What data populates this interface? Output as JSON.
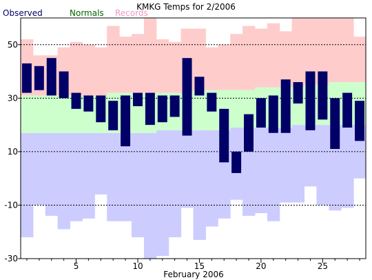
{
  "chart_data": {
    "type": "bar",
    "title": "KMKG Temps for 2/2006",
    "xlabel": "February 2006",
    "ylabel": "",
    "ylim": [
      -30,
      60
    ],
    "y_ticks": [
      -30,
      -10,
      10,
      30,
      50
    ],
    "y_tick_labels": [
      "-30",
      "-10",
      "10",
      "30",
      "50"
    ],
    "x_tick_days": [
      5,
      10,
      15,
      20,
      25
    ],
    "x_tick_labels": [
      "5",
      "10",
      "15",
      "20",
      "25"
    ],
    "days": [
      1,
      2,
      3,
      4,
      5,
      6,
      7,
      8,
      9,
      10,
      11,
      12,
      13,
      14,
      15,
      16,
      17,
      18,
      19,
      20,
      21,
      22,
      23,
      24,
      25,
      26,
      27,
      28
    ],
    "grid": "dashed horizontal at 50, 30, 10, -10",
    "legend_position": "top-left",
    "legend": {
      "observed": "Observed",
      "normals": "Normals",
      "records": "Records"
    },
    "colors": {
      "observed": "#000066",
      "normals_fill": "#ccffcc",
      "normals_text": "#006600",
      "records_high": "#ffcccc",
      "records_low": "#ccccff",
      "records_text": "#ee99cc",
      "grid": "#000000"
    },
    "series": [
      {
        "name": "Observed",
        "high": [
          43,
          42,
          45,
          40,
          32,
          31,
          31,
          29,
          31,
          32,
          32,
          31,
          31,
          45,
          38,
          32,
          26,
          10,
          24,
          30,
          31,
          37,
          36,
          40,
          40,
          30,
          32,
          29
        ],
        "low": [
          32,
          33,
          31,
          30,
          26,
          25,
          21,
          18,
          12,
          27,
          20,
          21,
          23,
          16,
          31,
          25,
          6,
          2,
          10,
          19,
          17,
          17,
          28,
          18,
          22,
          11,
          19,
          14
        ]
      },
      {
        "name": "Normals",
        "high": [
          31,
          31,
          31,
          31,
          31,
          31,
          31,
          32,
          32,
          32,
          32,
          32,
          32,
          32,
          33,
          33,
          33,
          33,
          33,
          34,
          34,
          34,
          34,
          35,
          35,
          36,
          36,
          36
        ],
        "low": [
          17,
          17,
          17,
          17,
          17,
          17,
          17,
          17,
          17,
          17,
          17,
          18,
          18,
          18,
          18,
          18,
          18,
          19,
          19,
          19,
          19,
          19,
          20,
          20,
          20,
          20,
          20,
          20
        ]
      },
      {
        "name": "Records",
        "high": [
          52,
          46,
          46,
          49,
          51,
          50,
          49,
          57,
          53,
          54,
          68,
          52,
          51,
          56,
          56,
          49,
          50,
          54,
          57,
          56,
          58,
          55,
          60,
          62,
          60,
          66,
          62,
          53
        ],
        "low": [
          -22,
          -10,
          -14,
          -19,
          -16,
          -15,
          -6,
          -16,
          -16,
          -22,
          -30,
          -29,
          -22,
          -11,
          -23,
          -18,
          -15,
          -8,
          -14,
          -13,
          -16,
          -9,
          -9,
          -3,
          -10,
          -12,
          -11,
          0
        ]
      }
    ]
  }
}
